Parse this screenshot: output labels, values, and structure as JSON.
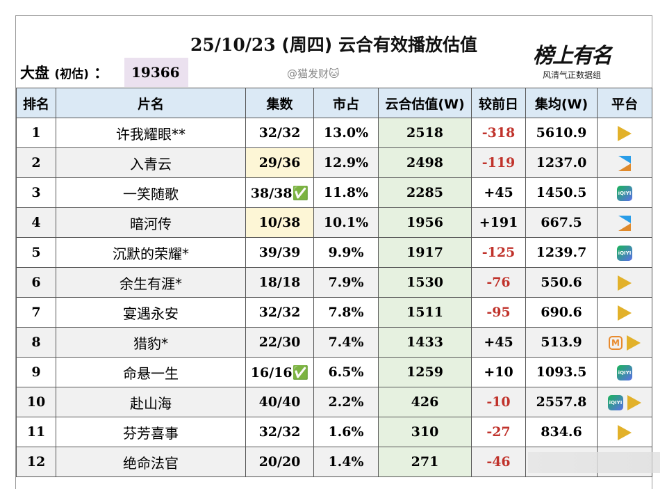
{
  "title": {
    "date": "25/10/23",
    "weekday": "(周四)",
    "text": "云合有效播放估值"
  },
  "dapan": {
    "label": "大盘",
    "sub": "(初估)",
    "colon": "：",
    "value": "19366"
  },
  "credit": "@猫发财🐱",
  "logo": {
    "big": "榜上有名",
    "small": "风清气正数据组"
  },
  "headers": [
    "排名",
    "片名",
    "集数",
    "市占",
    "云合估值(W)",
    "较前日",
    "集均(W)",
    "平台"
  ],
  "rows": [
    {
      "rank": "1",
      "name": "许我耀眼**",
      "eps": "32/32",
      "share": "13.0%",
      "yunhe": "2518",
      "delta": "-318",
      "avg": "5610.9",
      "platforms": [
        "tencent"
      ]
    },
    {
      "rank": "2",
      "name": "入青云",
      "eps": "29/36",
      "share": "12.9%",
      "yunhe": "2498",
      "delta": "-119",
      "avg": "1237.0",
      "platforms": [
        "youku"
      ]
    },
    {
      "rank": "3",
      "name": "一笑随歌",
      "eps": "38/38✅",
      "share": "11.8%",
      "yunhe": "2285",
      "delta": "+45",
      "avg": "1450.5",
      "platforms": [
        "iqiyi"
      ]
    },
    {
      "rank": "4",
      "name": "暗河传",
      "eps": "10/38",
      "share": "10.1%",
      "yunhe": "1956",
      "delta": "+191",
      "avg": "667.5",
      "platforms": [
        "youku"
      ]
    },
    {
      "rank": "5",
      "name": "沉默的荣耀*",
      "eps": "39/39",
      "share": "9.9%",
      "yunhe": "1917",
      "delta": "-125",
      "avg": "1239.7",
      "platforms": [
        "iqiyi"
      ]
    },
    {
      "rank": "6",
      "name": "余生有涯*",
      "eps": "18/18",
      "share": "7.9%",
      "yunhe": "1530",
      "delta": "-76",
      "avg": "550.6",
      "platforms": [
        "tencent"
      ]
    },
    {
      "rank": "7",
      "name": "宴遇永安",
      "eps": "32/32",
      "share": "7.8%",
      "yunhe": "1511",
      "delta": "-95",
      "avg": "690.6",
      "platforms": [
        "tencent"
      ]
    },
    {
      "rank": "8",
      "name": "猎豹*",
      "eps": "22/30",
      "share": "7.4%",
      "yunhe": "1433",
      "delta": "+45",
      "avg": "513.9",
      "platforms": [
        "mango",
        "tencent"
      ]
    },
    {
      "rank": "9",
      "name": "命悬一生",
      "eps": "16/16✅",
      "share": "6.5%",
      "yunhe": "1259",
      "delta": "+10",
      "avg": "1093.5",
      "platforms": [
        "iqiyi"
      ]
    },
    {
      "rank": "10",
      "name": "赴山海",
      "eps": "40/40",
      "share": "2.2%",
      "yunhe": "426",
      "delta": "-10",
      "avg": "2557.8",
      "platforms": [
        "iqiyi",
        "tencent"
      ]
    },
    {
      "rank": "11",
      "name": "芬芳喜事",
      "eps": "32/32",
      "share": "1.6%",
      "yunhe": "310",
      "delta": "-27",
      "avg": "834.6",
      "platforms": [
        "tencent"
      ]
    },
    {
      "rank": "12",
      "name": "绝命法官",
      "eps": "20/20",
      "share": "1.4%",
      "yunhe": "271",
      "delta": "-46",
      "avg": "",
      "platforms": []
    }
  ],
  "highlight_eps_rows": [
    2,
    4
  ],
  "colors": {
    "header": "#dbe9f5",
    "yunhe": "#e6f1e0",
    "negative": "#c0322b",
    "dapan": "#ebe1ef"
  }
}
